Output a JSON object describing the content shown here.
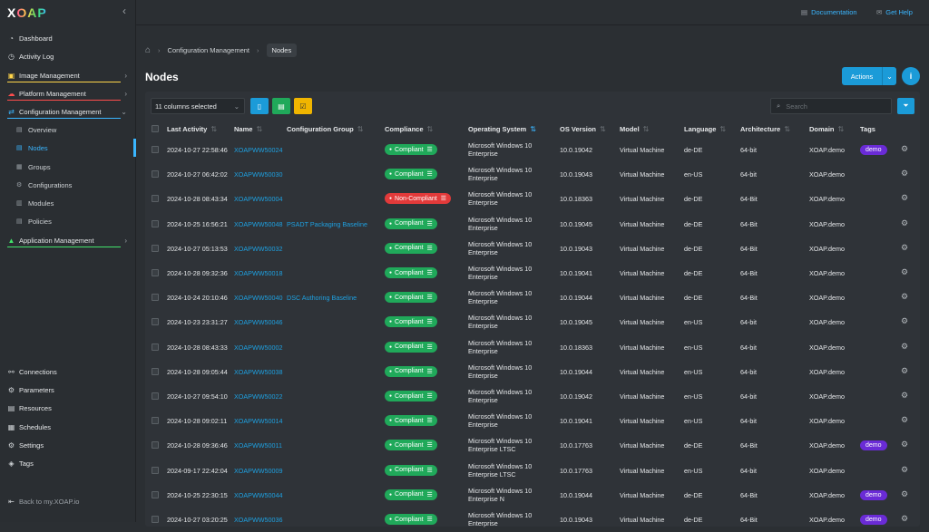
{
  "app": {
    "logo_x": "X",
    "logo_rest": "OAP"
  },
  "sidebar": {
    "items": [
      {
        "label": "Dashboard",
        "icon": "dashboard-icon"
      },
      {
        "label": "Activity Log",
        "icon": "activity-icon"
      },
      {
        "label": "Image Management",
        "icon": "image-icon"
      },
      {
        "label": "Platform Management",
        "icon": "platform-icon"
      },
      {
        "label": "Configuration Management",
        "icon": "configuration-icon"
      },
      {
        "label": "Application Management",
        "icon": "application-icon"
      }
    ],
    "sub_items": [
      {
        "label": "Overview"
      },
      {
        "label": "Nodes"
      },
      {
        "label": "Groups"
      },
      {
        "label": "Configurations"
      },
      {
        "label": "Modules"
      },
      {
        "label": "Policies"
      }
    ],
    "bottom_items": [
      {
        "label": "Connections"
      },
      {
        "label": "Parameters"
      },
      {
        "label": "Resources"
      },
      {
        "label": "Schedules"
      },
      {
        "label": "Settings"
      },
      {
        "label": "Tags"
      }
    ],
    "back_link": "Back to my.XOAP.io",
    "accent_colors": [
      "#ffd54a",
      "#ff4d4d",
      "#3ab6ff",
      "#42e36b"
    ]
  },
  "topbar": {
    "documentation": "Documentation",
    "help": "Get Help"
  },
  "breadcrumb": {
    "parent": "Configuration Management",
    "current": "Nodes"
  },
  "page": {
    "title": "Nodes",
    "actions_label": "Actions",
    "info_label": "i"
  },
  "toolbar": {
    "columns_selected": "11 columns selected",
    "search_placeholder": "Search"
  },
  "table": {
    "headers": [
      "Last Activity",
      "Name",
      "Configuration Group",
      "Compliance",
      "Operating System",
      "OS Version",
      "Model",
      "Language",
      "Architecture",
      "Domain",
      "Tags"
    ],
    "rows": [
      {
        "last": "2024-10-27 22:58:46",
        "name": "XOAPWW50024",
        "group": "",
        "compliance": "Compliant",
        "os": "Microsoft Windows 10 Enterprise",
        "ver": "10.0.19042",
        "model": "Virtual Machine",
        "lang": "de-DE",
        "arch": "64-bit",
        "domain": "XOAP.demo",
        "tag": "demo"
      },
      {
        "last": "2024-10-27 06:42:02",
        "name": "XOAPWW50030",
        "group": "",
        "compliance": "Compliant",
        "os": "Microsoft Windows 10 Enterprise",
        "ver": "10.0.19043",
        "model": "Virtual Machine",
        "lang": "en-US",
        "arch": "64-bit",
        "domain": "XOAP.demo",
        "tag": ""
      },
      {
        "last": "2024-10-28 08:43:34",
        "name": "XOAPWW50004",
        "group": "",
        "compliance": "Non-Compliant",
        "os": "Microsoft Windows 10 Enterprise",
        "ver": "10.0.18363",
        "model": "Virtual Machine",
        "lang": "de-DE",
        "arch": "64-Bit",
        "domain": "XOAP.demo",
        "tag": ""
      },
      {
        "last": "2024-10-25 16:56:21",
        "name": "XOAPWW50048",
        "group": "PSADT Packaging Baseline",
        "compliance": "Compliant",
        "os": "Microsoft Windows 10 Enterprise",
        "ver": "10.0.19045",
        "model": "Virtual Machine",
        "lang": "de-DE",
        "arch": "64-Bit",
        "domain": "XOAP.demo",
        "tag": ""
      },
      {
        "last": "2024-10-27 05:13:53",
        "name": "XOAPWW50032",
        "group": "",
        "compliance": "Compliant",
        "os": "Microsoft Windows 10 Enterprise",
        "ver": "10.0.19043",
        "model": "Virtual Machine",
        "lang": "de-DE",
        "arch": "64-Bit",
        "domain": "XOAP.demo",
        "tag": ""
      },
      {
        "last": "2024-10-28 09:32:36",
        "name": "XOAPWW50018",
        "group": "",
        "compliance": "Compliant",
        "os": "Microsoft Windows 10 Enterprise",
        "ver": "10.0.19041",
        "model": "Virtual Machine",
        "lang": "de-DE",
        "arch": "64-Bit",
        "domain": "XOAP.demo",
        "tag": ""
      },
      {
        "last": "2024-10-24 20:10:46",
        "name": "XOAPWW50040",
        "group": "DSC Authoring Baseline",
        "compliance": "Compliant",
        "os": "Microsoft Windows 10 Enterprise",
        "ver": "10.0.19044",
        "model": "Virtual Machine",
        "lang": "de-DE",
        "arch": "64-Bit",
        "domain": "XOAP.demo",
        "tag": ""
      },
      {
        "last": "2024-10-23 23:31:27",
        "name": "XOAPWW50046",
        "group": "",
        "compliance": "Compliant",
        "os": "Microsoft Windows 10 Enterprise",
        "ver": "10.0.19045",
        "model": "Virtual Machine",
        "lang": "en-US",
        "arch": "64-bit",
        "domain": "XOAP.demo",
        "tag": ""
      },
      {
        "last": "2024-10-28 08:43:33",
        "name": "XOAPWW50002",
        "group": "",
        "compliance": "Compliant",
        "os": "Microsoft Windows 10 Enterprise",
        "ver": "10.0.18363",
        "model": "Virtual Machine",
        "lang": "en-US",
        "arch": "64-bit",
        "domain": "XOAP.demo",
        "tag": ""
      },
      {
        "last": "2024-10-28 09:05:44",
        "name": "XOAPWW50038",
        "group": "",
        "compliance": "Compliant",
        "os": "Microsoft Windows 10 Enterprise",
        "ver": "10.0.19044",
        "model": "Virtual Machine",
        "lang": "en-US",
        "arch": "64-bit",
        "domain": "XOAP.demo",
        "tag": ""
      },
      {
        "last": "2024-10-27 09:54:10",
        "name": "XOAPWW50022",
        "group": "",
        "compliance": "Compliant",
        "os": "Microsoft Windows 10 Enterprise",
        "ver": "10.0.19042",
        "model": "Virtual Machine",
        "lang": "en-US",
        "arch": "64-bit",
        "domain": "XOAP.demo",
        "tag": ""
      },
      {
        "last": "2024-10-28 09:02:11",
        "name": "XOAPWW50014",
        "group": "",
        "compliance": "Compliant",
        "os": "Microsoft Windows 10 Enterprise",
        "ver": "10.0.19041",
        "model": "Virtual Machine",
        "lang": "en-US",
        "arch": "64-bit",
        "domain": "XOAP.demo",
        "tag": ""
      },
      {
        "last": "2024-10-28 09:36:46",
        "name": "XOAPWW50011",
        "group": "",
        "compliance": "Compliant",
        "os": "Microsoft Windows 10 Enterprise LTSC",
        "ver": "10.0.17763",
        "model": "Virtual Machine",
        "lang": "de-DE",
        "arch": "64-Bit",
        "domain": "XOAP.demo",
        "tag": "demo"
      },
      {
        "last": "2024-09-17 22:42:04",
        "name": "XOAPWW50009",
        "group": "",
        "compliance": "Compliant",
        "os": "Microsoft Windows 10 Enterprise LTSC",
        "ver": "10.0.17763",
        "model": "Virtual Machine",
        "lang": "en-US",
        "arch": "64-bit",
        "domain": "XOAP.demo",
        "tag": ""
      },
      {
        "last": "2024-10-25 22:30:15",
        "name": "XOAPWW50044",
        "group": "",
        "compliance": "Compliant",
        "os": "Microsoft Windows 10 Enterprise N",
        "ver": "10.0.19044",
        "model": "Virtual Machine",
        "lang": "de-DE",
        "arch": "64-Bit",
        "domain": "XOAP.demo",
        "tag": "demo"
      },
      {
        "last": "2024-10-27 03:20:25",
        "name": "XOAPWW50036",
        "group": "",
        "compliance": "Compliant",
        "os": "Microsoft Windows 10 Enterprise",
        "ver": "10.0.19043",
        "model": "Virtual Machine",
        "lang": "de-DE",
        "arch": "64-Bit",
        "domain": "XOAP.demo",
        "tag": "demo"
      }
    ]
  },
  "colors": {
    "accent": "#1b9bd8",
    "compliant": "#20a95a",
    "non_compliant": "#e23a3a",
    "tag": "#6a2bd6"
  }
}
